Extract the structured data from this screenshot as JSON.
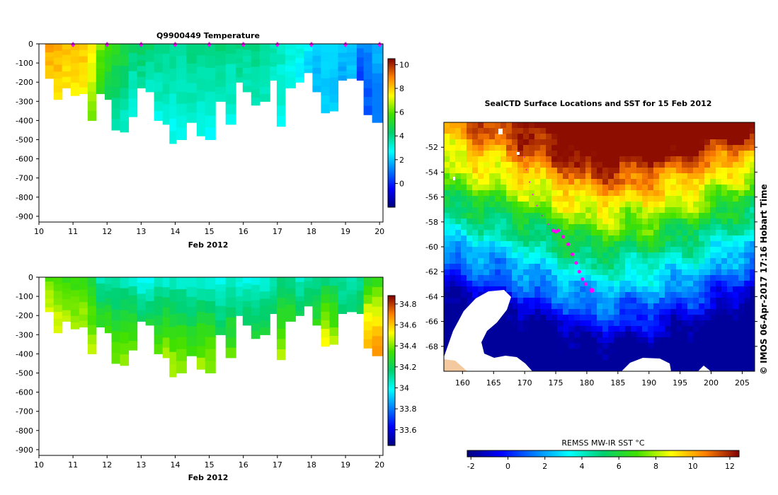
{
  "chart_data": [
    {
      "type": "heatmap",
      "title": "Q9900449  Temperature",
      "xlabel": "Feb 2012",
      "x_ticks": [
        10,
        11,
        12,
        13,
        14,
        15,
        16,
        17,
        18,
        19,
        20
      ],
      "y_ticks": [
        0,
        -100,
        -200,
        -300,
        -400,
        -500,
        -600,
        -700,
        -800,
        -900
      ],
      "xlim": [
        10,
        20.1
      ],
      "ylim": [
        -930,
        0
      ],
      "grid": false,
      "colorbar": {
        "ticks": [
          0,
          2,
          4,
          6,
          8,
          10
        ],
        "range": [
          -2,
          10.5
        ]
      },
      "surfacing_markers_x": [
        11,
        12,
        13,
        14,
        15,
        16,
        17,
        18,
        19,
        20
      ],
      "profiles": [
        {
          "x": 10.3,
          "depth": 180,
          "s": 8.5,
          "d": 8.0
        },
        {
          "x": 10.55,
          "depth": 290,
          "s": 8.5,
          "d": 7.7
        },
        {
          "x": 10.8,
          "depth": 230,
          "s": 8.3,
          "d": 7.6
        },
        {
          "x": 11.05,
          "depth": 270,
          "s": 8.3,
          "d": 7.6
        },
        {
          "x": 11.3,
          "depth": 260,
          "s": 8.2,
          "d": 7.4
        },
        {
          "x": 11.55,
          "depth": 400,
          "s": 7.8,
          "d": 6.3
        },
        {
          "x": 11.8,
          "depth": 260,
          "s": 6.5,
          "d": 5.2
        },
        {
          "x": 12.05,
          "depth": 290,
          "s": 5.8,
          "d": 4.6
        },
        {
          "x": 12.25,
          "depth": 450,
          "s": 5.5,
          "d": 3.5
        },
        {
          "x": 12.5,
          "depth": 460,
          "s": 5.2,
          "d": 3.2
        },
        {
          "x": 12.75,
          "depth": 380,
          "s": 4.5,
          "d": 2.8
        },
        {
          "x": 13.0,
          "depth": 230,
          "s": 4.6,
          "d": 3.6
        },
        {
          "x": 13.25,
          "depth": 250,
          "s": 4.5,
          "d": 3.3
        },
        {
          "x": 13.5,
          "depth": 400,
          "s": 4.3,
          "d": 3.0
        },
        {
          "x": 13.75,
          "depth": 420,
          "s": 4.2,
          "d": 3.0
        },
        {
          "x": 13.95,
          "depth": 520,
          "s": 4.0,
          "d": 2.8
        },
        {
          "x": 14.15,
          "depth": 500,
          "s": 4.1,
          "d": 2.9
        },
        {
          "x": 14.45,
          "depth": 410,
          "s": 4.2,
          "d": 3.2
        },
        {
          "x": 14.75,
          "depth": 480,
          "s": 4.0,
          "d": 2.9
        },
        {
          "x": 15.0,
          "depth": 500,
          "s": 4.0,
          "d": 2.8
        },
        {
          "x": 15.3,
          "depth": 300,
          "s": 4.2,
          "d": 3.4
        },
        {
          "x": 15.6,
          "depth": 420,
          "s": 4.0,
          "d": 3.0
        },
        {
          "x": 15.9,
          "depth": 200,
          "s": 4.2,
          "d": 3.6
        },
        {
          "x": 16.1,
          "depth": 250,
          "s": 4.0,
          "d": 3.4
        },
        {
          "x": 16.35,
          "depth": 320,
          "s": 4.2,
          "d": 3.4
        },
        {
          "x": 16.6,
          "depth": 300,
          "s": 4.1,
          "d": 3.3
        },
        {
          "x": 16.9,
          "depth": 190,
          "s": 3.7,
          "d": 3.3
        },
        {
          "x": 17.1,
          "depth": 430,
          "s": 3.4,
          "d": 2.9
        },
        {
          "x": 17.35,
          "depth": 230,
          "s": 3.2,
          "d": 2.8
        },
        {
          "x": 17.65,
          "depth": 200,
          "s": 3.0,
          "d": 2.6
        },
        {
          "x": 17.9,
          "depth": 150,
          "s": 2.6,
          "d": 2.1
        },
        {
          "x": 18.15,
          "depth": 250,
          "s": 2.1,
          "d": 1.8
        },
        {
          "x": 18.4,
          "depth": 360,
          "s": 2.4,
          "d": 2.0
        },
        {
          "x": 18.65,
          "depth": 350,
          "s": 2.3,
          "d": 2.0
        },
        {
          "x": 18.9,
          "depth": 190,
          "s": 2.0,
          "d": 1.6
        },
        {
          "x": 19.15,
          "depth": 180,
          "s": 2.2,
          "d": 1.8
        },
        {
          "x": 19.45,
          "depth": 190,
          "s": 1.5,
          "d": 0.2
        },
        {
          "x": 19.65,
          "depth": 370,
          "s": 1.4,
          "d": 0.5
        },
        {
          "x": 19.9,
          "depth": 410,
          "s": 1.8,
          "d": 1.0
        }
      ]
    },
    {
      "type": "heatmap",
      "title": "",
      "xlabel": "Feb 2012",
      "x_ticks": [
        10,
        11,
        12,
        13,
        14,
        15,
        16,
        17,
        18,
        19,
        20
      ],
      "y_ticks": [
        0,
        -100,
        -200,
        -300,
        -400,
        -500,
        -600,
        -700,
        -800,
        -900
      ],
      "xlim": [
        10,
        20.1
      ],
      "ylim": [
        -930,
        0
      ],
      "grid": false,
      "colorbar": {
        "ticks": [
          33.6,
          33.8,
          34,
          34.2,
          34.4,
          34.6,
          34.8
        ],
        "range": [
          33.45,
          34.88
        ]
      },
      "profiles": [
        {
          "x": 10.3,
          "depth": 180,
          "s": 34.35,
          "d": 34.5
        },
        {
          "x": 10.55,
          "depth": 290,
          "s": 34.35,
          "d": 34.5
        },
        {
          "x": 10.8,
          "depth": 230,
          "s": 34.3,
          "d": 34.45
        },
        {
          "x": 11.05,
          "depth": 270,
          "s": 34.3,
          "d": 34.45
        },
        {
          "x": 11.3,
          "depth": 260,
          "s": 34.3,
          "d": 34.45
        },
        {
          "x": 11.55,
          "depth": 400,
          "s": 34.25,
          "d": 34.45
        },
        {
          "x": 11.8,
          "depth": 260,
          "s": 34.05,
          "d": 34.3
        },
        {
          "x": 12.05,
          "depth": 290,
          "s": 34.05,
          "d": 34.35
        },
        {
          "x": 12.25,
          "depth": 450,
          "s": 34.05,
          "d": 34.4
        },
        {
          "x": 12.5,
          "depth": 460,
          "s": 34.05,
          "d": 34.45
        },
        {
          "x": 12.75,
          "depth": 380,
          "s": 34.0,
          "d": 34.4
        },
        {
          "x": 13.0,
          "depth": 230,
          "s": 33.95,
          "d": 34.2
        },
        {
          "x": 13.25,
          "depth": 250,
          "s": 33.95,
          "d": 34.25
        },
        {
          "x": 13.5,
          "depth": 400,
          "s": 34.0,
          "d": 34.4
        },
        {
          "x": 13.75,
          "depth": 420,
          "s": 34.0,
          "d": 34.45
        },
        {
          "x": 13.95,
          "depth": 520,
          "s": 34.0,
          "d": 34.48
        },
        {
          "x": 14.15,
          "depth": 500,
          "s": 34.0,
          "d": 34.45
        },
        {
          "x": 14.45,
          "depth": 410,
          "s": 34.0,
          "d": 34.35
        },
        {
          "x": 14.75,
          "depth": 480,
          "s": 34.0,
          "d": 34.45
        },
        {
          "x": 15.0,
          "depth": 500,
          "s": 34.0,
          "d": 34.45
        },
        {
          "x": 15.3,
          "depth": 300,
          "s": 34.0,
          "d": 34.2
        },
        {
          "x": 15.6,
          "depth": 420,
          "s": 34.0,
          "d": 34.38
        },
        {
          "x": 15.9,
          "depth": 200,
          "s": 34.0,
          "d": 34.12
        },
        {
          "x": 16.1,
          "depth": 250,
          "s": 34.0,
          "d": 34.2
        },
        {
          "x": 16.35,
          "depth": 320,
          "s": 34.0,
          "d": 34.25
        },
        {
          "x": 16.6,
          "depth": 300,
          "s": 34.0,
          "d": 34.25
        },
        {
          "x": 16.9,
          "depth": 190,
          "s": 34.05,
          "d": 34.2
        },
        {
          "x": 17.1,
          "depth": 430,
          "s": 34.1,
          "d": 34.45
        },
        {
          "x": 17.35,
          "depth": 230,
          "s": 34.1,
          "d": 34.3
        },
        {
          "x": 17.65,
          "depth": 200,
          "s": 34.05,
          "d": 34.2
        },
        {
          "x": 17.9,
          "depth": 150,
          "s": 34.1,
          "d": 34.2
        },
        {
          "x": 18.15,
          "depth": 250,
          "s": 34.1,
          "d": 34.3
        },
        {
          "x": 18.4,
          "depth": 360,
          "s": 34.1,
          "d": 34.55
        },
        {
          "x": 18.65,
          "depth": 350,
          "s": 34.1,
          "d": 34.45
        },
        {
          "x": 18.9,
          "depth": 190,
          "s": 34.1,
          "d": 34.15
        },
        {
          "x": 19.15,
          "depth": 180,
          "s": 34.1,
          "d": 34.15
        },
        {
          "x": 19.45,
          "depth": 190,
          "s": 34.1,
          "d": 34.2
        },
        {
          "x": 19.65,
          "depth": 370,
          "s": 34.25,
          "d": 34.65
        },
        {
          "x": 19.9,
          "depth": 410,
          "s": 34.25,
          "d": 34.7
        }
      ]
    },
    {
      "type": "heatmap",
      "title": "SealCTD Surface Locations and SST for 15 Feb 2012",
      "x_ticks": [
        160,
        165,
        170,
        175,
        180,
        185,
        190,
        195,
        200,
        205
      ],
      "y_ticks": [
        -52,
        -54,
        -56,
        -58,
        -60,
        -62,
        -64,
        -66,
        -68
      ],
      "xlim": [
        157,
        207
      ],
      "ylim": [
        -70,
        -50
      ],
      "colorbar": {
        "label": "REMSS MW-IR SST °C",
        "ticks": [
          -2,
          0,
          2,
          4,
          6,
          8,
          10,
          12
        ],
        "range": [
          -2.2,
          12.5
        ]
      },
      "front_lat_by_lon": [
        {
          "lon": 157,
          "front": -57.5
        },
        {
          "lon": 162,
          "front": -58.2
        },
        {
          "lon": 167,
          "front": -58.8
        },
        {
          "lon": 172,
          "front": -59.8
        },
        {
          "lon": 177,
          "front": -60.8
        },
        {
          "lon": 182,
          "front": -61.5
        },
        {
          "lon": 187,
          "front": -61.2
        },
        {
          "lon": 192,
          "front": -60.8
        },
        {
          "lon": 197,
          "front": -60.0
        },
        {
          "lon": 202,
          "front": -58.8
        },
        {
          "lon": 207,
          "front": -57.8
        }
      ],
      "track": [
        {
          "lon": 170.0,
          "lat": -52.8
        },
        {
          "lon": 170.3,
          "lat": -53.8
        },
        {
          "lon": 170.8,
          "lat": -54.8
        },
        {
          "lon": 171.3,
          "lat": -55.8
        },
        {
          "lon": 172.0,
          "lat": -56.7
        },
        {
          "lon": 172.8,
          "lat": -57.5
        },
        {
          "lon": 173.8,
          "lat": -58.2
        },
        {
          "lon": 174.6,
          "lat": -58.7
        },
        {
          "lon": 175.0,
          "lat": -58.8
        },
        {
          "lon": 175.4,
          "lat": -58.7
        },
        {
          "lon": 176.2,
          "lat": -59.2
        },
        {
          "lon": 177.0,
          "lat": -59.8
        },
        {
          "lon": 177.7,
          "lat": -60.6
        },
        {
          "lon": 178.3,
          "lat": -61.3
        },
        {
          "lon": 178.8,
          "lat": -62.0
        },
        {
          "lon": 179.3,
          "lat": -62.6
        },
        {
          "lon": 179.8,
          "lat": -63.0
        }
      ],
      "current_position": {
        "lon": 180.8,
        "lat": -63.5
      }
    }
  ],
  "credit": "© IMOS 06-Apr-2017 17:16 Hobart Time"
}
